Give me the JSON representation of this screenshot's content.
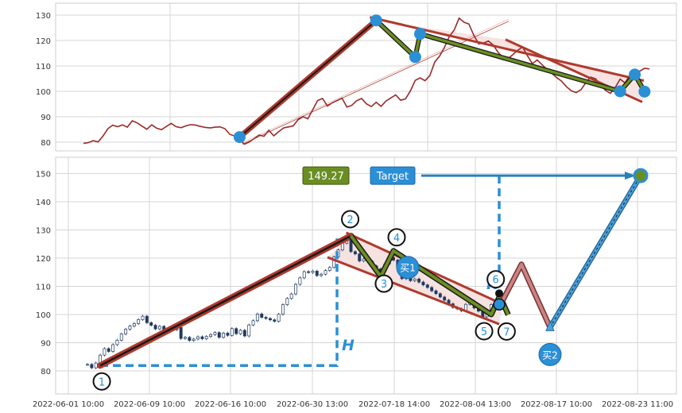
{
  "chart_data": [
    {
      "type": "line",
      "panel": "overview",
      "ylim": [
        76,
        135
      ],
      "yticks": [
        80,
        90,
        100,
        110,
        120,
        130
      ],
      "grid": true,
      "series": [
        {
          "values": [
            79.5,
            79.8,
            80.6,
            80.1,
            82.4,
            85.3,
            86.7,
            86.1,
            86.8,
            85.9,
            88.4,
            87.6,
            86.3,
            85.1,
            86.8,
            85.5,
            84.9,
            86.2,
            87.4,
            86.1,
            85.7,
            86.4,
            86.9,
            86.7,
            86.2,
            85.8,
            85.6,
            85.9,
            86.0,
            85.3,
            83.1,
            82.4,
            80.8,
            79.2,
            80.1,
            81.4,
            82.8,
            82.3,
            84.7,
            82.5,
            84.1,
            85.6,
            86.0,
            86.4,
            88.9,
            90.0,
            89.2,
            92.8,
            96.4,
            97.2,
            94.2,
            95.5,
            96.4,
            97.3,
            93.8,
            94.5,
            96.3,
            97.2,
            95.1,
            94.0,
            95.7,
            94.1,
            96.2,
            97.4,
            98.6,
            96.5,
            97.0,
            100.1,
            104.3,
            105.3,
            104.2,
            106.2,
            111.5,
            113.9,
            117.3,
            121.6,
            124.2,
            128.8,
            127.2,
            126.5,
            122.1,
            118.7,
            119.0,
            119.8,
            118.2,
            115.3,
            113.2,
            112.8,
            114.4,
            116.2,
            117.4,
            114.0,
            110.9,
            112.3,
            110.5,
            108.6,
            107.1,
            105.4,
            104.0,
            101.8,
            100.2,
            99.5,
            100.7,
            103.5,
            105.6,
            104.9,
            102.3,
            100.4,
            99.2,
            101.5,
            104.8,
            103.3,
            106.4,
            108.6,
            107.9,
            109.1,
            108.8
          ]
        }
      ],
      "markers": [
        {
          "label": "",
          "i": 32,
          "y": 82.0
        },
        {
          "label": "",
          "i": 60,
          "y": 127.9
        },
        {
          "label": "",
          "i": 68,
          "y": 113.5
        },
        {
          "label": "",
          "i": 69,
          "y": 122.6
        },
        {
          "label": "",
          "i": 110,
          "y": 100.0
        },
        {
          "label": "",
          "i": 113,
          "y": 106.6
        },
        {
          "label": "",
          "i": 115,
          "y": 99.9
        }
      ]
    },
    {
      "type": "candlestick",
      "panel": "pattern",
      "ylim": [
        76,
        155
      ],
      "yticks": [
        80,
        90,
        100,
        110,
        120,
        130,
        140,
        150
      ],
      "xticks": [
        "2022-06-01 10:00",
        "2022-06-09 10:00",
        "2022-06-16 10:00",
        "2022-06-30 13:00",
        "2022-07-18 14:00",
        "2022-08-04 13:00",
        "2022-08-17 10:00",
        "2022-08-23 11:00"
      ],
      "grid": true,
      "closes": [
        82.3,
        81.1,
        82.8,
        85.6,
        87.9,
        86.9,
        89.3,
        90.9,
        93.1,
        94.8,
        95.9,
        96.8,
        98.2,
        99.4,
        97.1,
        96.2,
        94.9,
        95.8,
        94.3,
        95.1,
        94.6,
        95.4,
        91.5,
        91.9,
        90.8,
        91.3,
        92.1,
        91.4,
        92.2,
        92.9,
        93.6,
        91.9,
        93.4,
        92.6,
        95.0,
        93.2,
        94.4,
        92.4,
        96.3,
        97.8,
        100.2,
        99.0,
        98.6,
        98.1,
        97.6,
        100.1,
        103.5,
        105.7,
        107.3,
        110.7,
        113.0,
        115.2,
        114.9,
        115.4,
        113.8,
        114.3,
        115.6,
        116.7,
        120.4,
        122.9,
        125.3,
        127.5,
        122.3,
        121.5,
        119.0,
        119.7,
        118.9,
        117.2,
        116.2,
        115.4,
        117.9,
        120.2,
        119.3,
        116.7,
        112.7,
        113.4,
        112.0,
        112.6,
        111.5,
        110.5,
        109.6,
        108.4,
        107.4,
        106.2,
        105.1,
        103.8,
        102.5,
        102.0,
        101.3,
        103.6,
        104.7,
        102.3,
        101.2,
        99.2,
        101.1,
        103.5
      ],
      "value_label": "149.27",
      "target_label": "Target",
      "target_value": 149.27,
      "height_label": "H",
      "points": [
        {
          "label": "1",
          "i": 3,
          "y": 81.9
        },
        {
          "label": "2",
          "i": 62,
          "y": 127.9
        },
        {
          "label": "3",
          "i": 69,
          "y": 113.5
        },
        {
          "label": "4",
          "i": 72,
          "y": 122.6
        },
        {
          "label": "5",
          "i": 95,
          "y": 100.0
        },
        {
          "label": "6",
          "i": 97,
          "y": 106.6
        },
        {
          "label": "7",
          "i": 99,
          "y": 99.9
        }
      ],
      "buy_labels": [
        "买1",
        "买2"
      ],
      "buy1_value": 116.7,
      "buy2_value": 85.8,
      "projection": {
        "peak": 117.8,
        "trough": 95.4,
        "target": 149.27
      }
    }
  ],
  "colors": {
    "line": "#9a2a2a",
    "trend": "#b03a2e",
    "channel_fill": "#f6e0de",
    "zigzag": "#6b8e23",
    "marker": "#2b8fd6",
    "dashed": "#2b8fd6",
    "value_box": "#6b8e23",
    "target_box": "#2b8fd6",
    "grid": "#d5d5d5"
  }
}
